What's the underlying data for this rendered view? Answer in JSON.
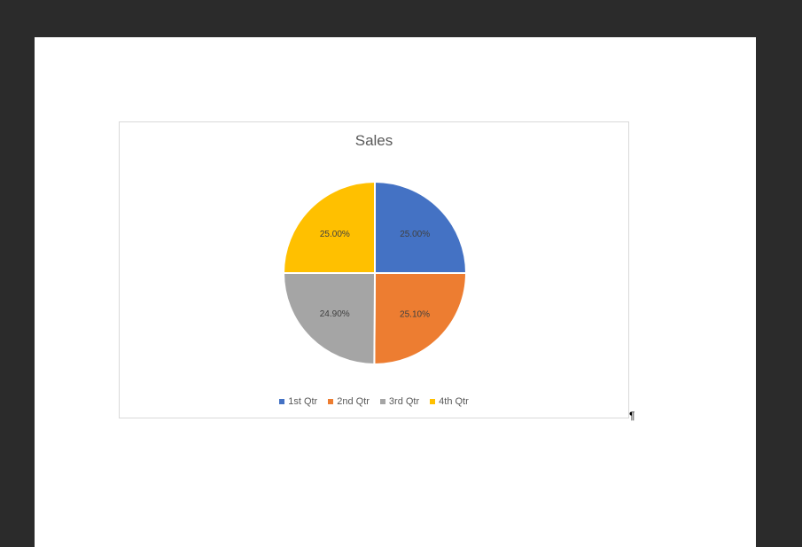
{
  "document": {
    "paragraph_mark": "¶"
  },
  "chart_data": {
    "type": "pie",
    "title": "Sales",
    "categories": [
      "1st Qtr",
      "2nd Qtr",
      "3rd Qtr",
      "4th Qtr"
    ],
    "values": [
      25.0,
      25.1,
      24.9,
      25.0
    ],
    "data_labels": [
      "25.00%",
      "25.10%",
      "24.90%",
      "25.00%"
    ],
    "colors": [
      "#4472C4",
      "#ED7D31",
      "#A5A5A5",
      "#FFC000"
    ],
    "legend_position": "bottom"
  }
}
